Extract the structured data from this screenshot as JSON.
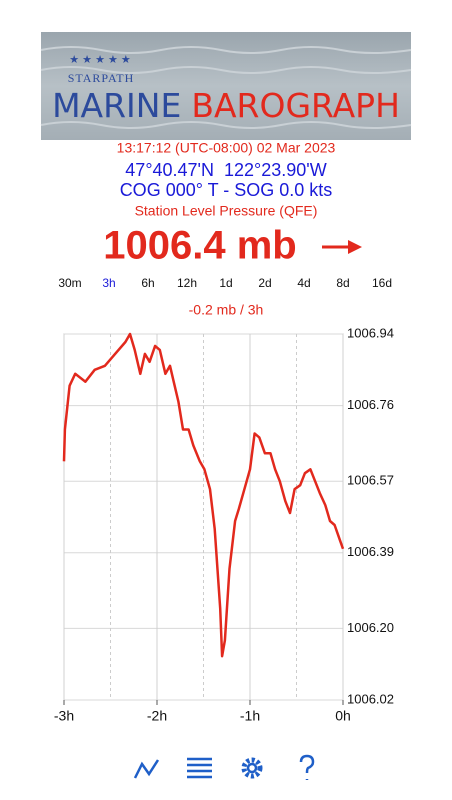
{
  "header": {
    "brand": "STARPATH",
    "title_left": "MARINE",
    "title_right": "BAROGRAPH"
  },
  "status": {
    "time": "13:17:12 (UTC-08:00) 02 Mar 2023",
    "position": "47°40.47'N  122°23.90'W",
    "course": "COG 000° T - SOG 0.0 kts",
    "pressure_label": "Station Level Pressure (QFE)",
    "reading": "1006.4 mb"
  },
  "range_tabs": [
    {
      "label": "30m",
      "active": false
    },
    {
      "label": "3h",
      "active": true
    },
    {
      "label": "6h",
      "active": false
    },
    {
      "label": "12h",
      "active": false
    },
    {
      "label": "1d",
      "active": false
    },
    {
      "label": "2d",
      "active": false
    },
    {
      "label": "4d",
      "active": false
    },
    {
      "label": "8d",
      "active": false
    },
    {
      "label": "16d",
      "active": false
    }
  ],
  "trend": "-0.2 mb / 3h",
  "chart_data": {
    "type": "line",
    "color": "#e2291d",
    "grid": true,
    "x": [
      -3.0,
      -2.99,
      -2.94,
      -2.88,
      -2.77,
      -2.67,
      -2.56,
      -2.45,
      -2.34,
      -2.29,
      -2.24,
      -2.18,
      -2.13,
      -2.08,
      -2.02,
      -1.97,
      -1.91,
      -1.86,
      -1.82,
      -1.77,
      -1.72,
      -1.66,
      -1.61,
      -1.54,
      -1.49,
      -1.43,
      -1.38,
      -1.32,
      -1.3,
      -1.27,
      -1.22,
      -1.16,
      -1.12,
      -1.06,
      -1.0,
      -0.95,
      -0.9,
      -0.84,
      -0.78,
      -0.73,
      -0.68,
      -0.62,
      -0.57,
      -0.52,
      -0.46,
      -0.41,
      -0.35,
      -0.3,
      -0.25,
      -0.19,
      -0.14,
      -0.09,
      -0.03,
      0.0
    ],
    "values": [
      1006.62,
      1006.7,
      1006.81,
      1006.84,
      1006.82,
      1006.85,
      1006.86,
      1006.89,
      1006.92,
      1006.94,
      1006.9,
      1006.84,
      1006.89,
      1006.87,
      1006.91,
      1006.9,
      1006.84,
      1006.86,
      1006.82,
      1006.77,
      1006.7,
      1006.7,
      1006.66,
      1006.62,
      1006.6,
      1006.55,
      1006.45,
      1006.25,
      1006.13,
      1006.17,
      1006.35,
      1006.47,
      1006.5,
      1006.55,
      1006.6,
      1006.69,
      1006.68,
      1006.64,
      1006.64,
      1006.6,
      1006.57,
      1006.52,
      1006.49,
      1006.55,
      1006.56,
      1006.59,
      1006.6,
      1006.57,
      1006.54,
      1006.51,
      1006.47,
      1006.46,
      1006.42,
      1006.4
    ],
    "xlim": [
      -3,
      0
    ],
    "xticks": [
      {
        "value": -3,
        "label": "-3h"
      },
      {
        "value": -2,
        "label": "-2h"
      },
      {
        "value": -1,
        "label": "-1h"
      },
      {
        "value": 0,
        "label": "0h"
      }
    ],
    "minor_xticks": [
      -2.5,
      -1.5,
      -0.5
    ],
    "ylim": [
      1006.02,
      1006.94
    ],
    "yticks": [
      1006.94,
      1006.76,
      1006.57,
      1006.39,
      {
        "value": 1006.2,
        "label": "1006.20"
      },
      1006.02
    ]
  }
}
